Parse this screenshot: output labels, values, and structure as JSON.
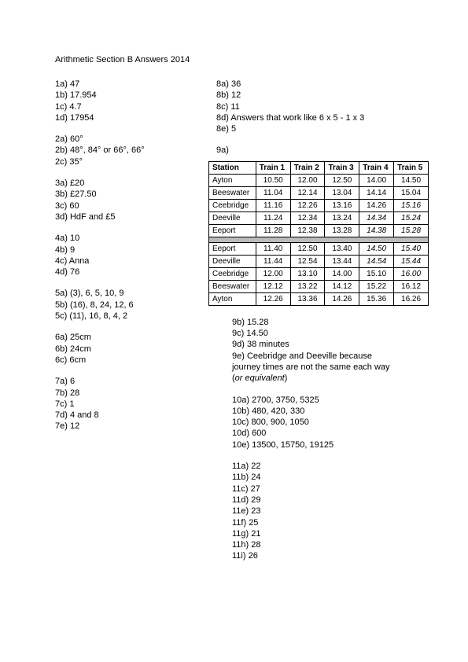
{
  "title": "Arithmetic Section B Answers 2014",
  "left": {
    "q1": [
      "1a) 47",
      "1b) 17.954",
      "1c) 4.7",
      "1d) 17954"
    ],
    "q2": [
      "2a) 60°",
      "2b) 48°, 84° or 66°, 66°",
      "2c) 35°"
    ],
    "q3": [
      "3a) £20",
      "3b) £27.50",
      "3c) 60",
      "3d) HdF and £5"
    ],
    "q4": [
      "4a) 10",
      "4b) 9",
      "4c) Anna",
      "4d) 76"
    ],
    "q5": [
      "5a) (3), 6, 5, 10, 9",
      "5b) (16), 8, 24, 12, 6",
      "5c) (11), 16, 8, 4, 2"
    ],
    "q6": [
      "6a) 25cm",
      "6b) 24cm",
      "6c) 6cm"
    ],
    "q7": [
      "7a) 6",
      "7b) 28",
      "7c) 1",
      "7d) 4 and 8",
      "7e) 12"
    ]
  },
  "right": {
    "q8": [
      "8a) 36",
      "8b) 12",
      "8c) 11",
      "8d) Answers that work like 6 x 5 - 1 x 3",
      "8e) 5"
    ],
    "q9a": "9a)",
    "table": {
      "headers": [
        "Station",
        "Train 1",
        "Train 2",
        "Train 3",
        "Train 4",
        "Train 5"
      ],
      "rows1": [
        {
          "s": "Ayton",
          "c": [
            [
              "10.50",
              0
            ],
            [
              "12.00",
              0
            ],
            [
              "12.50",
              0
            ],
            [
              "14.00",
              0
            ],
            [
              "14.50",
              0
            ]
          ]
        },
        {
          "s": "Beeswater",
          "c": [
            [
              "11.04",
              0
            ],
            [
              "12.14",
              0
            ],
            [
              "13.04",
              0
            ],
            [
              "14.14",
              0
            ],
            [
              "15.04",
              0
            ]
          ]
        },
        {
          "s": "Ceebridge",
          "c": [
            [
              "11.16",
              0
            ],
            [
              "12.26",
              0
            ],
            [
              "13.16",
              0
            ],
            [
              "14.26",
              0
            ],
            [
              "15.16",
              1
            ]
          ]
        },
        {
          "s": "Deeville",
          "c": [
            [
              "11.24",
              0
            ],
            [
              "12.34",
              0
            ],
            [
              "13.24",
              0
            ],
            [
              "14.34",
              1
            ],
            [
              "15.24",
              1
            ]
          ]
        },
        {
          "s": "Eeport",
          "c": [
            [
              "11.28",
              0
            ],
            [
              "12.38",
              0
            ],
            [
              "13.28",
              0
            ],
            [
              "14.38",
              1
            ],
            [
              "15.28",
              1
            ]
          ]
        }
      ],
      "rows2": [
        {
          "s": "Eeport",
          "c": [
            [
              "11.40",
              0
            ],
            [
              "12.50",
              0
            ],
            [
              "13.40",
              0
            ],
            [
              "14.50",
              1
            ],
            [
              "15.40",
              1
            ]
          ]
        },
        {
          "s": "Deeville",
          "c": [
            [
              "11.44",
              0
            ],
            [
              "12.54",
              0
            ],
            [
              "13.44",
              0
            ],
            [
              "14.54",
              1
            ],
            [
              "15.44",
              1
            ]
          ]
        },
        {
          "s": "Ceebridge",
          "c": [
            [
              "12.00",
              0
            ],
            [
              "13.10",
              0
            ],
            [
              "14.00",
              0
            ],
            [
              "15.10",
              0
            ],
            [
              "16.00",
              1
            ]
          ]
        },
        {
          "s": "Beeswater",
          "c": [
            [
              "12.12",
              0
            ],
            [
              "13.22",
              0
            ],
            [
              "14.12",
              0
            ],
            [
              "15.22",
              0
            ],
            [
              "16.12",
              0
            ]
          ]
        },
        {
          "s": "Ayton",
          "c": [
            [
              "12.26",
              0
            ],
            [
              "13.36",
              0
            ],
            [
              "14.26",
              0
            ],
            [
              "15.36",
              0
            ],
            [
              "16.26",
              0
            ]
          ]
        }
      ]
    },
    "q9rest": [
      "9b) 15.28",
      "9c) 14.50",
      "9d) 38 minutes",
      "9e) Ceebridge and Deeville because",
      "journey times are not the same each way"
    ],
    "q9equiv": "(or equivalent)",
    "q10": [
      "10a) 2700, 3750, 5325",
      "10b) 480, 420, 330",
      "10c) 800, 900, 1050",
      "10d) 600",
      "10e) 13500, 15750, 19125"
    ],
    "q11": [
      "11a) 22",
      "11b) 24",
      "11c) 27",
      "11d) 29",
      "11e) 23",
      "11f) 25",
      "11g) 21",
      "11h) 28",
      "11i) 26"
    ]
  }
}
